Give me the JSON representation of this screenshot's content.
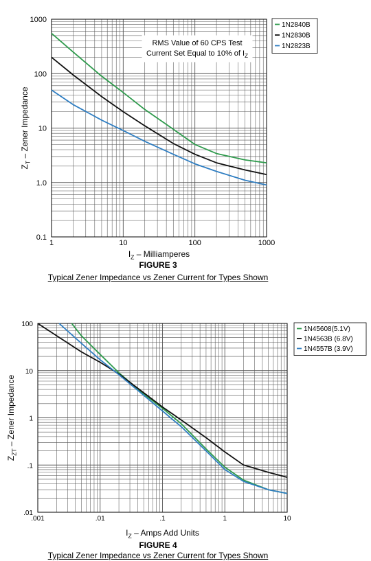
{
  "chart_data": [
    {
      "type": "line",
      "xscale": "log",
      "yscale": "log",
      "xlim": [
        1,
        1000
      ],
      "ylim": [
        0.1,
        1000
      ],
      "grid": true,
      "legend_position": "top-right, outside plot",
      "xtick_labels": [
        "1",
        "10",
        "100",
        "1000"
      ],
      "xtick_values": [
        1,
        10,
        100,
        1000
      ],
      "ytick_labels": [
        "1000",
        "100",
        "10",
        "1.0",
        "0.1"
      ],
      "ytick_values": [
        1000,
        100,
        10,
        1,
        0.1
      ],
      "ylabel": {
        "main": "Z",
        "sub": "T",
        "rest": " – Zener Impedance"
      },
      "xlabel": {
        "main": "I",
        "sub": "Z",
        "rest": " – Milliamperes"
      },
      "annotation": {
        "line1": "RMS Value of 60 CPS Test",
        "line2": "Current Set Equal to 10% of I",
        "line2_sub": "Z"
      },
      "series": [
        {
          "name": "1N2840B",
          "color": "#2e9a4c",
          "x": [
            1,
            2,
            5,
            10,
            20,
            50,
            100,
            200,
            500,
            1000
          ],
          "y": [
            550,
            250,
            90,
            45,
            22,
            9.5,
            5,
            3.4,
            2.6,
            2.3
          ]
        },
        {
          "name": "1N2830B",
          "color": "#111111",
          "x": [
            1,
            2,
            5,
            10,
            20,
            50,
            100,
            200,
            500,
            1000
          ],
          "y": [
            200,
            95,
            38,
            20,
            11,
            5.2,
            3.3,
            2.3,
            1.7,
            1.4
          ]
        },
        {
          "name": "1N2823B",
          "color": "#2f7ec2",
          "x": [
            1,
            2,
            5,
            10,
            20,
            50,
            100,
            200,
            500,
            1000
          ],
          "y": [
            50,
            27,
            14,
            9,
            5.7,
            3.3,
            2.2,
            1.6,
            1.1,
            0.9
          ]
        }
      ]
    },
    {
      "type": "line",
      "xscale": "log",
      "yscale": "log",
      "xlim": [
        0.001,
        10
      ],
      "ylim": [
        0.01,
        100
      ],
      "grid": true,
      "legend_position": "top-right, outside plot",
      "xtick_labels": [
        ".001",
        ".01",
        ".1",
        "1",
        "10"
      ],
      "xtick_values": [
        0.001,
        0.01,
        0.1,
        1,
        10
      ],
      "ytick_labels": [
        "100",
        "10",
        "1",
        ".1",
        ".01"
      ],
      "ytick_values": [
        100,
        10,
        1,
        0.1,
        0.01
      ],
      "ylabel": {
        "main": "Z",
        "sub": "ZT",
        "rest": " – Zener Impedance"
      },
      "xlabel": {
        "main": "I",
        "sub": "Z",
        "rest": " – Amps Add Units"
      },
      "series": [
        {
          "name": "1N45608(5.1V)",
          "color": "#2e9a4c",
          "x": [
            0.0035,
            0.005,
            0.01,
            0.02,
            0.05,
            0.1,
            0.2,
            0.5,
            1,
            2,
            5,
            10
          ],
          "y": [
            100,
            55,
            22,
            9,
            3.2,
            1.6,
            0.75,
            0.22,
            0.09,
            0.048,
            0.03,
            0.025
          ]
        },
        {
          "name": "1N4563B (6.8V)",
          "color": "#111111",
          "x": [
            0.001,
            0.002,
            0.005,
            0.01,
            0.02,
            0.05,
            0.1,
            0.2,
            0.5,
            1,
            2,
            5,
            10
          ],
          "y": [
            100,
            55,
            25,
            15,
            8.5,
            3.4,
            1.7,
            0.9,
            0.38,
            0.19,
            0.1,
            0.07,
            0.055
          ]
        },
        {
          "name": "1N4557B (3.9V)",
          "color": "#2f7ec2",
          "x": [
            0.0022,
            0.005,
            0.01,
            0.02,
            0.05,
            0.1,
            0.2,
            0.5,
            1,
            2,
            5,
            10
          ],
          "y": [
            100,
            38,
            17,
            8.2,
            3,
            1.4,
            0.65,
            0.2,
            0.08,
            0.045,
            0.03,
            0.025
          ]
        }
      ]
    }
  ],
  "figures": [
    {
      "title": "FIGURE 3",
      "caption": "Typical Zener Impedance vs Zener Current for Types Shown"
    },
    {
      "title": "FIGURE 4",
      "caption": "Typical Zener Impedance vs Zener Current for Types Shown"
    }
  ]
}
